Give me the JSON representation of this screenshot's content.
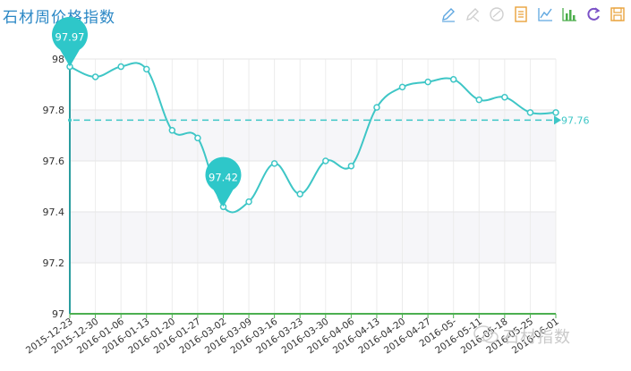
{
  "chart_data": {
    "type": "line",
    "title": "石材周价格指数",
    "x": [
      "2015-12-23",
      "2015-12-30",
      "2016-01-06",
      "2016-01-13",
      "2016-01-20",
      "2016-01-27",
      "2016-03-02",
      "2016-03-09",
      "2016-03-16",
      "2016-03-23",
      "2016-03-30",
      "2016-04-06",
      "2016-04-13",
      "2016-04-20",
      "2016-04-27",
      "2016-05-04",
      "2016-05-11",
      "2016-05-18",
      "2016-05-25",
      "2016-06-01"
    ],
    "x_tick_labels": [
      "2015-12-23",
      "2015-12-30",
      "2016-01-06",
      "2016-01-13",
      "2016-01-20",
      "2016-01-27",
      "2016-03-02",
      "2016-03-09",
      "2016-03-16",
      "2016-03-23",
      "2016-03-30",
      "2016-04-06",
      "2016-04-13",
      "2016-04-20",
      "2016-04-27",
      "2016-05-",
      "2016-05-11",
      "2016-05-18",
      "2016-05-25",
      "2016-06-01"
    ],
    "series": [
      {
        "values": [
          97.97,
          97.93,
          97.97,
          97.96,
          97.72,
          97.69,
          97.42,
          97.44,
          97.59,
          97.47,
          97.6,
          97.58,
          97.81,
          97.89,
          97.91,
          97.92,
          97.84,
          97.85,
          97.79,
          97.79
        ]
      }
    ],
    "ylim": [
      97,
      98
    ],
    "y_ticks": [
      "97",
      "97.2",
      "97.4",
      "97.6",
      "97.8",
      "98"
    ],
    "markers": [
      {
        "type": "max",
        "label": "97.97",
        "index": 0
      },
      {
        "type": "min",
        "label": "97.42",
        "index": 6
      }
    ],
    "average_line": {
      "value": 97.76,
      "label": "97.76"
    },
    "grid": true,
    "colors": {
      "line": "#3ec6c6",
      "marker": "#2ec7c9",
      "title": "#2a87c5",
      "axis_x": "#4caf50",
      "axis_y": "#2a9d9f"
    }
  },
  "toolbox": {
    "items": [
      {
        "name": "mark",
        "color": "#5fa7e0"
      },
      {
        "name": "mark-undo",
        "color": "#cfcfcf"
      },
      {
        "name": "mark-clear",
        "color": "#cfcfcf"
      },
      {
        "name": "data-view",
        "color": "#e9a23b"
      },
      {
        "name": "line-switch",
        "color": "#5fa7e0"
      },
      {
        "name": "bar-switch",
        "color": "#4cae4c"
      },
      {
        "name": "restore",
        "color": "#7b52c7"
      },
      {
        "name": "save-image",
        "color": "#e9a23b"
      }
    ]
  },
  "watermark": {
    "text": "石材指数"
  }
}
